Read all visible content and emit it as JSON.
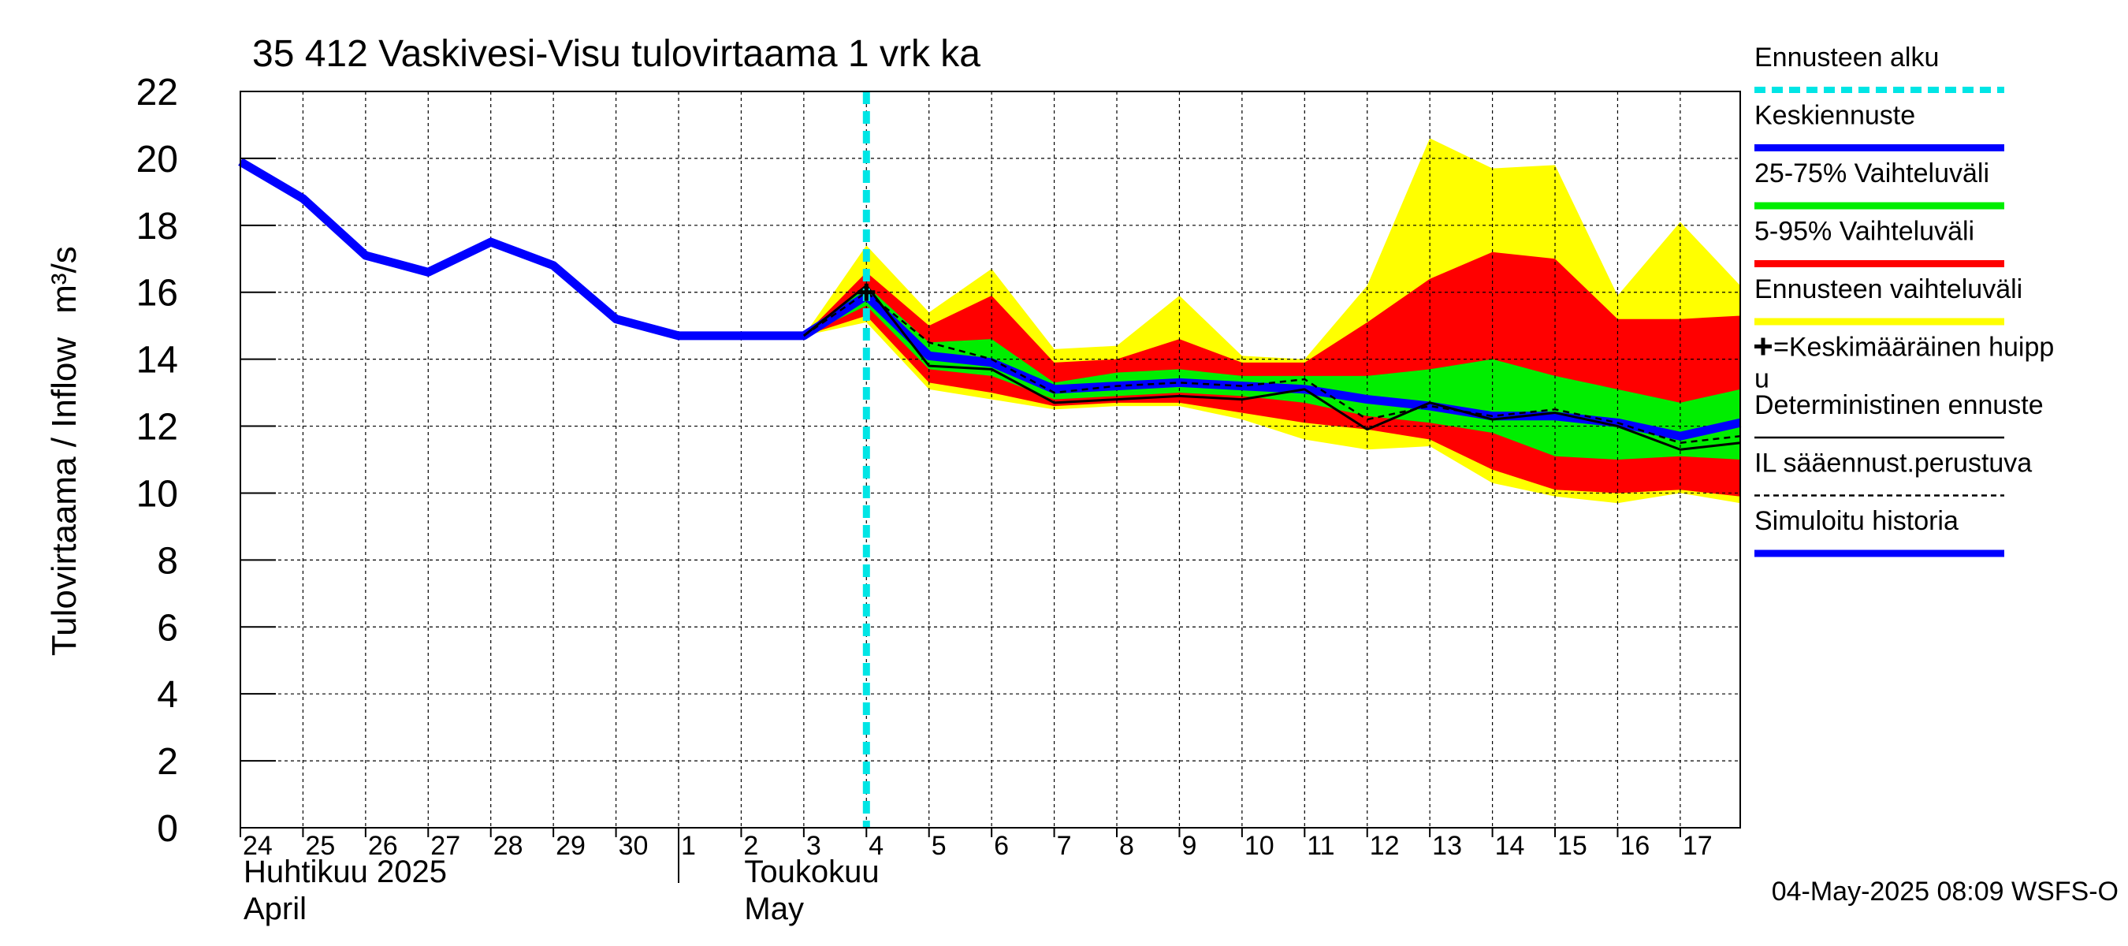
{
  "chart_data": {
    "type": "area",
    "title": "35 412 Vaskivesi-Visu tulovirtaama 1 vrk ka",
    "ylabel": "Tulovirtaama / Inflow",
    "yunit": "m³/s",
    "ylim": [
      0,
      22
    ],
    "yticks": [
      0,
      2,
      4,
      6,
      8,
      10,
      12,
      14,
      16,
      18,
      20,
      22
    ],
    "grid": true,
    "legend_position": "right",
    "xlim": [
      "2025-04-24",
      "2025-05-17T23:00"
    ],
    "x_tick_labels": [
      {
        "date": "2025-04-24",
        "label": "24"
      },
      {
        "date": "2025-04-25",
        "label": "25"
      },
      {
        "date": "2025-04-26",
        "label": "26"
      },
      {
        "date": "2025-04-27",
        "label": "27"
      },
      {
        "date": "2025-04-28",
        "label": "28"
      },
      {
        "date": "2025-04-29",
        "label": "29"
      },
      {
        "date": "2025-04-30",
        "label": "30"
      },
      {
        "date": "2025-05-01",
        "label": "1"
      },
      {
        "date": "2025-05-02",
        "label": "2"
      },
      {
        "date": "2025-05-03",
        "label": "3"
      },
      {
        "date": "2025-05-04",
        "label": "4"
      },
      {
        "date": "2025-05-05",
        "label": "5"
      },
      {
        "date": "2025-05-06",
        "label": "6"
      },
      {
        "date": "2025-05-07",
        "label": "7"
      },
      {
        "date": "2025-05-08",
        "label": "8"
      },
      {
        "date": "2025-05-09",
        "label": "9"
      },
      {
        "date": "2025-05-10",
        "label": "10"
      },
      {
        "date": "2025-05-11",
        "label": "11"
      },
      {
        "date": "2025-05-12",
        "label": "12"
      },
      {
        "date": "2025-05-13",
        "label": "13"
      },
      {
        "date": "2025-05-14",
        "label": "14"
      },
      {
        "date": "2025-05-15",
        "label": "15"
      },
      {
        "date": "2025-05-16",
        "label": "16"
      },
      {
        "date": "2025-05-17",
        "label": "17"
      }
    ],
    "month_labels": [
      {
        "date": "2025-04-24",
        "fi": "Huhtikuu  2025",
        "en": "April"
      },
      {
        "date": "2025-05-02",
        "fi": "Toukokuu",
        "en": "May"
      }
    ],
    "month_boundary": "2025-05-01",
    "forecast_start": "2025-05-04",
    "series": [
      {
        "name": "Ennusteen vaihteluväli",
        "kind": "band",
        "color": "#ffff00",
        "x": [
          "2025-05-03",
          "2025-05-04",
          "2025-05-05",
          "2025-05-06",
          "2025-05-07",
          "2025-05-08",
          "2025-05-09",
          "2025-05-10",
          "2025-05-11",
          "2025-05-12",
          "2025-05-13",
          "2025-05-14",
          "2025-05-15",
          "2025-05-16",
          "2025-05-17",
          "2025-05-17T23:00"
        ],
        "upper": [
          14.7,
          17.4,
          15.4,
          16.7,
          14.3,
          14.4,
          15.9,
          14.1,
          14.0,
          16.2,
          20.6,
          19.7,
          19.8,
          15.9,
          18.1,
          16.2
        ],
        "lower": [
          14.7,
          15.1,
          13.1,
          12.8,
          12.5,
          12.6,
          12.6,
          12.2,
          11.6,
          11.3,
          11.4,
          10.3,
          9.9,
          9.7,
          10.0,
          9.7
        ]
      },
      {
        "name": "5-95% Vaihteluväli",
        "kind": "band",
        "color": "#ff0000",
        "x": [
          "2025-05-03",
          "2025-05-04",
          "2025-05-05",
          "2025-05-06",
          "2025-05-07",
          "2025-05-08",
          "2025-05-09",
          "2025-05-10",
          "2025-05-11",
          "2025-05-12",
          "2025-05-13",
          "2025-05-14",
          "2025-05-15",
          "2025-05-16",
          "2025-05-17",
          "2025-05-17T23:00"
        ],
        "upper": [
          14.7,
          16.6,
          15.0,
          15.9,
          13.9,
          14.0,
          14.6,
          13.9,
          13.9,
          15.1,
          16.4,
          17.2,
          17.0,
          15.2,
          15.2,
          15.3
        ],
        "lower": [
          14.7,
          15.3,
          13.3,
          13.0,
          12.6,
          12.7,
          12.7,
          12.4,
          12.1,
          11.9,
          11.6,
          10.7,
          10.1,
          10.0,
          10.1,
          9.9
        ]
      },
      {
        "name": "25-75% Vaihteluväli",
        "kind": "band",
        "color": "#00ee00",
        "x": [
          "2025-05-03",
          "2025-05-04",
          "2025-05-05",
          "2025-05-06",
          "2025-05-07",
          "2025-05-08",
          "2025-05-09",
          "2025-05-10",
          "2025-05-11",
          "2025-05-12",
          "2025-05-13",
          "2025-05-14",
          "2025-05-15",
          "2025-05-16",
          "2025-05-17",
          "2025-05-17T23:00"
        ],
        "upper": [
          14.7,
          16.2,
          14.5,
          14.6,
          13.3,
          13.6,
          13.7,
          13.5,
          13.5,
          13.5,
          13.7,
          14.0,
          13.5,
          13.1,
          12.7,
          13.1
        ],
        "lower": [
          14.7,
          15.6,
          13.7,
          13.5,
          12.8,
          12.9,
          13.0,
          12.9,
          12.7,
          12.3,
          12.1,
          11.8,
          11.1,
          11.0,
          11.1,
          11.0
        ]
      },
      {
        "name": "Simuloitu historia",
        "kind": "line",
        "color": "#0000ff",
        "x": [
          "2025-04-24",
          "2025-04-25",
          "2025-04-26",
          "2025-04-27",
          "2025-04-28",
          "2025-04-29",
          "2025-04-30",
          "2025-05-01",
          "2025-05-02",
          "2025-05-03",
          "2025-05-04"
        ],
        "y": [
          19.9,
          18.8,
          17.1,
          16.6,
          17.5,
          16.8,
          15.2,
          14.7,
          14.7,
          14.7,
          15.9
        ]
      },
      {
        "name": "Keskiennuste",
        "kind": "line",
        "color": "#0000ff",
        "x": [
          "2025-05-04",
          "2025-05-05",
          "2025-05-06",
          "2025-05-07",
          "2025-05-08",
          "2025-05-09",
          "2025-05-10",
          "2025-05-11",
          "2025-05-12",
          "2025-05-13",
          "2025-05-14",
          "2025-05-15",
          "2025-05-16",
          "2025-05-17",
          "2025-05-17T23:00"
        ],
        "y": [
          15.9,
          14.1,
          13.9,
          13.1,
          13.2,
          13.3,
          13.2,
          13.1,
          12.8,
          12.6,
          12.3,
          12.3,
          12.1,
          11.7,
          12.1
        ]
      },
      {
        "name": "Deterministinen ennuste",
        "kind": "line",
        "color": "#000000",
        "x": [
          "2025-05-03",
          "2025-05-04",
          "2025-05-05",
          "2025-05-06",
          "2025-05-07",
          "2025-05-08",
          "2025-05-09",
          "2025-05-10",
          "2025-05-11",
          "2025-05-12",
          "2025-05-13",
          "2025-05-14",
          "2025-05-15",
          "2025-05-16",
          "2025-05-17",
          "2025-05-17T23:00"
        ],
        "y": [
          14.7,
          16.2,
          13.8,
          13.7,
          12.7,
          12.8,
          12.9,
          12.8,
          13.1,
          11.9,
          12.7,
          12.2,
          12.4,
          12.0,
          11.3,
          11.5
        ]
      },
      {
        "name": "IL sääennust.perustuva",
        "kind": "dashed",
        "color": "#000000",
        "x": [
          "2025-05-03",
          "2025-05-04",
          "2025-05-05",
          "2025-05-06",
          "2025-05-07",
          "2025-05-08",
          "2025-05-09",
          "2025-05-10",
          "2025-05-11",
          "2025-05-12",
          "2025-05-13",
          "2025-05-14",
          "2025-05-15",
          "2025-05-16",
          "2025-05-17",
          "2025-05-17T23:00"
        ],
        "y": [
          14.7,
          16.0,
          14.5,
          14.0,
          13.0,
          13.2,
          13.3,
          13.2,
          13.4,
          12.2,
          12.6,
          12.3,
          12.5,
          12.1,
          11.5,
          11.7
        ]
      },
      {
        "name": "Ennusteen alku",
        "kind": "vline",
        "color": "#00e5e5",
        "x": "2025-05-04"
      }
    ],
    "markers": [
      {
        "name": "=Keskimääräinen huippu",
        "x": "2025-05-04",
        "y": 16.0,
        "symbol": "+"
      }
    ],
    "legend": [
      {
        "label": "Ennusteen alku",
        "style": "dotted",
        "color": "#00e5e5"
      },
      {
        "label": "Keskiennuste",
        "style": "line",
        "color": "#0000ff"
      },
      {
        "label": "25-75% Vaihteluväli",
        "style": "line",
        "color": "#00ee00"
      },
      {
        "label": "5-95% Vaihteluväli",
        "style": "line",
        "color": "#ff0000"
      },
      {
        "label": "Ennusteen vaihteluväli",
        "style": "line",
        "color": "#ffff00"
      },
      {
        "label": "=Keskimääräinen huippu",
        "style": "plus",
        "color": "#000000"
      },
      {
        "label": "Deterministinen ennuste",
        "style": "thin",
        "color": "#000000"
      },
      {
        "label": "IL sääennust.perustuva",
        "style": "dashed",
        "color": "#000000"
      },
      {
        "label": "Simuloitu historia",
        "style": "line",
        "color": "#0000ff"
      }
    ],
    "footer": "04-May-2025 08:09 WSFS-O"
  }
}
